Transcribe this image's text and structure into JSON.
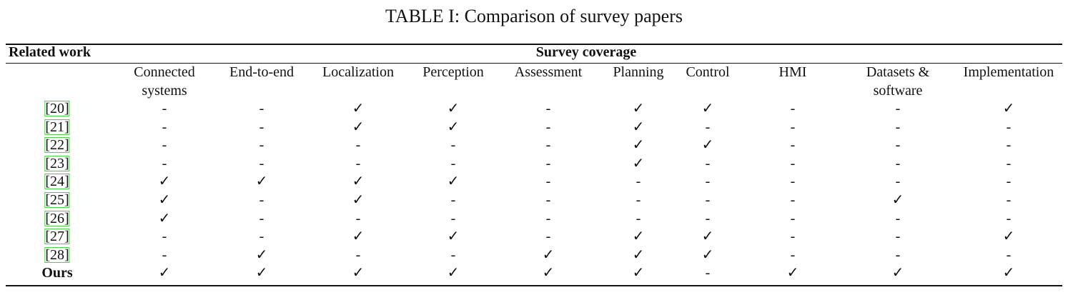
{
  "title": "TABLE I: Comparison of survey papers",
  "table": {
    "group_headers": [
      "Related work",
      "Survey coverage"
    ],
    "columns": [
      [
        "Connected",
        "systems"
      ],
      [
        "End-to-end"
      ],
      [
        "Localization"
      ],
      [
        "Perception"
      ],
      [
        "Assessment"
      ],
      [
        "Planning"
      ],
      [
        "Control"
      ],
      [
        "HMI"
      ],
      [
        "Datasets &",
        "software"
      ],
      [
        "Implementation"
      ]
    ],
    "rows": [
      {
        "label": "[20]",
        "cells": [
          "-",
          "-",
          "✓",
          "✓",
          "-",
          "✓",
          "✓",
          "-",
          "-",
          "✓"
        ]
      },
      {
        "label": "[21]",
        "cells": [
          "-",
          "-",
          "✓",
          "✓",
          "-",
          "✓",
          "-",
          "-",
          "-",
          "-"
        ]
      },
      {
        "label": "[22]",
        "cells": [
          "-",
          "-",
          "-",
          "-",
          "-",
          "✓",
          "✓",
          "-",
          "-",
          "-"
        ]
      },
      {
        "label": "[23]",
        "cells": [
          "-",
          "-",
          "-",
          "-",
          "-",
          "✓",
          "-",
          "-",
          "-",
          "-"
        ]
      },
      {
        "label": "[24]",
        "cells": [
          "✓",
          "✓",
          "✓",
          "✓",
          "-",
          "-",
          "-",
          "-",
          "-",
          "-"
        ]
      },
      {
        "label": "[25]",
        "cells": [
          "✓",
          "-",
          "✓",
          "-",
          "-",
          "-",
          "-",
          "-",
          "✓",
          "-"
        ]
      },
      {
        "label": "[26]",
        "cells": [
          "✓",
          "-",
          "-",
          "-",
          "-",
          "-",
          "-",
          "-",
          "-",
          "-"
        ]
      },
      {
        "label": "[27]",
        "cells": [
          "-",
          "-",
          "✓",
          "✓",
          "-",
          "✓",
          "✓",
          "-",
          "-",
          "✓"
        ]
      },
      {
        "label": "[28]",
        "cells": [
          "-",
          "✓",
          "-",
          "-",
          "✓",
          "✓",
          "✓",
          "-",
          "-",
          "-"
        ]
      },
      {
        "label": "Ours",
        "cells": [
          "✓",
          "✓",
          "✓",
          "✓",
          "✓",
          "✓",
          "-",
          "✓",
          "✓",
          "✓"
        ]
      }
    ]
  }
}
